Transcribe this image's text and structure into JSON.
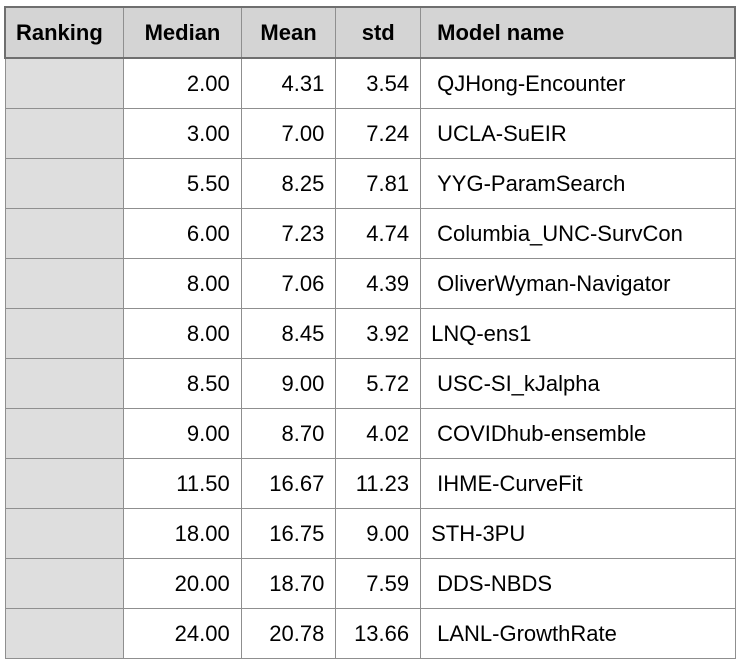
{
  "table": {
    "headers": [
      "Ranking",
      "Median",
      "Mean",
      "std",
      "Model name"
    ],
    "rows": [
      {
        "ranking": "",
        "median": "2.00",
        "mean": "4.31",
        "std": "3.54",
        "model": "QJHong-Encounter"
      },
      {
        "ranking": "",
        "median": "3.00",
        "mean": "7.00",
        "std": "7.24",
        "model": "UCLA-SuEIR"
      },
      {
        "ranking": "",
        "median": "5.50",
        "mean": "8.25",
        "std": "7.81",
        "model": "YYG-ParamSearch"
      },
      {
        "ranking": "",
        "median": "6.00",
        "mean": "7.23",
        "std": "4.74",
        "model": "Columbia_UNC-SurvCon"
      },
      {
        "ranking": "",
        "median": "8.00",
        "mean": "7.06",
        "std": "4.39",
        "model": "OliverWyman-Navigator"
      },
      {
        "ranking": "",
        "median": "8.00",
        "mean": "8.45",
        "std": "3.92",
        "model": "LNQ-ens1"
      },
      {
        "ranking": "",
        "median": "8.50",
        "mean": "9.00",
        "std": "5.72",
        "model": "USC-SI_kJalpha"
      },
      {
        "ranking": "",
        "median": "9.00",
        "mean": "8.70",
        "std": "4.02",
        "model": "COVIDhub-ensemble"
      },
      {
        "ranking": "",
        "median": "11.50",
        "mean": "16.67",
        "std": "11.23",
        "model": "IHME-CurveFit"
      },
      {
        "ranking": "",
        "median": "18.00",
        "mean": "16.75",
        "std": "9.00",
        "model": "STH-3PU"
      },
      {
        "ranking": "",
        "median": "20.00",
        "mean": "18.70",
        "std": "7.59",
        "model": "DDS-NBDS"
      },
      {
        "ranking": "",
        "median": "24.00",
        "mean": "20.78",
        "std": "13.66",
        "model": "LANL-GrowthRate"
      }
    ]
  }
}
